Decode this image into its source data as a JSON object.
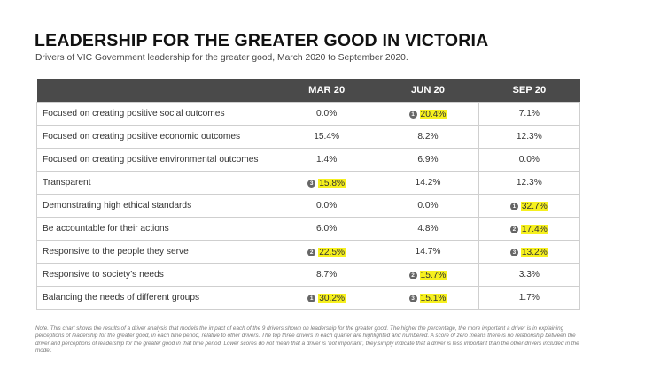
{
  "title": "LEADERSHIP FOR THE GREATER GOOD IN VICTORIA",
  "subtitle": "Drivers of VIC Government leadership for the greater good, March 2020 to September 2020.",
  "chart_data": {
    "type": "table",
    "columns": [
      "MAR 20",
      "JUN 20",
      "SEP 20"
    ],
    "rows": [
      {
        "label": "Focused on creating positive social outcomes",
        "cells": [
          {
            "value": "0.0%",
            "rank": null
          },
          {
            "value": "20.4%",
            "rank": "1"
          },
          {
            "value": "7.1%",
            "rank": null
          }
        ]
      },
      {
        "label": "Focused on creating positive economic outcomes",
        "cells": [
          {
            "value": "15.4%",
            "rank": null
          },
          {
            "value": "8.2%",
            "rank": null
          },
          {
            "value": "12.3%",
            "rank": null
          }
        ]
      },
      {
        "label": "Focused on creating positive environmental outcomes",
        "cells": [
          {
            "value": "1.4%",
            "rank": null
          },
          {
            "value": "6.9%",
            "rank": null
          },
          {
            "value": "0.0%",
            "rank": null
          }
        ]
      },
      {
        "label": "Transparent",
        "cells": [
          {
            "value": "15.8%",
            "rank": "3"
          },
          {
            "value": "14.2%",
            "rank": null
          },
          {
            "value": "12.3%",
            "rank": null
          }
        ]
      },
      {
        "label": "Demonstrating high ethical standards",
        "cells": [
          {
            "value": "0.0%",
            "rank": null
          },
          {
            "value": "0.0%",
            "rank": null
          },
          {
            "value": "32.7%",
            "rank": "1"
          }
        ]
      },
      {
        "label": "Be accountable for their actions",
        "cells": [
          {
            "value": "6.0%",
            "rank": null
          },
          {
            "value": "4.8%",
            "rank": null
          },
          {
            "value": "17.4%",
            "rank": "2"
          }
        ]
      },
      {
        "label": "Responsive to the people they serve",
        "cells": [
          {
            "value": "22.5%",
            "rank": "2"
          },
          {
            "value": "14.7%",
            "rank": null
          },
          {
            "value": "13.2%",
            "rank": "3"
          }
        ]
      },
      {
        "label": "Responsive to society’s needs",
        "cells": [
          {
            "value": "8.7%",
            "rank": null
          },
          {
            "value": "15.7%",
            "rank": "2"
          },
          {
            "value": "3.3%",
            "rank": null
          }
        ]
      },
      {
        "label": "Balancing the needs of different groups",
        "cells": [
          {
            "value": "30.2%",
            "rank": "1"
          },
          {
            "value": "15.1%",
            "rank": "3"
          },
          {
            "value": "1.7%",
            "rank": null
          }
        ]
      }
    ],
    "header_color": "#4a4a4a",
    "highlight_color": "#f6f01e",
    "rank_badge_color": "#666666"
  },
  "note": "Note. This chart shows the results of a driver analysis that models the impact of each of the 9 drivers shown on leadership for the greater good. The higher the percentage, the more important a driver is in explaining perceptions of leadership for the greater good, in each time period, relative to other drivers. The top three drivers in each quarter are highlighted and numbered. A score of zero means there is no relationship between the driver and perceptions of leadership for the greater good in that time period. Lower scores do not mean that a driver is ‘not important’, they simply indicate that a driver is less important than the other drivers included in the model."
}
